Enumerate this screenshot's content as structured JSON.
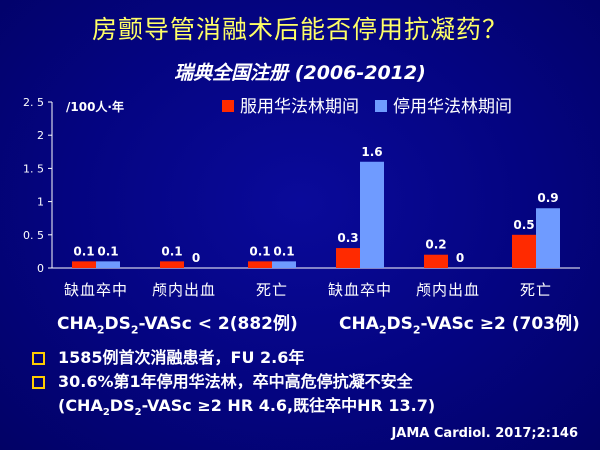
{
  "slide": {
    "title": "房颤导管消融术后能否停用抗凝药？",
    "subtitle": "瑞典全国注册 (2006-2012)"
  },
  "chart_data": {
    "type": "bar",
    "unit_label": "/100人·年",
    "categories": [
      "缺血卒中",
      "颅内出血",
      "死亡",
      "缺血卒中",
      "颅内出血",
      "死亡"
    ],
    "series": [
      {
        "name": "服用华法林期间",
        "color": "#ff2a00",
        "values": [
          0.1,
          0.1,
          0.1,
          0.3,
          0.2,
          0.5
        ],
        "labels": [
          "0.1",
          "0.1",
          "0.1",
          "0.3",
          "0.2",
          "0.5"
        ]
      },
      {
        "name": "停用华法林期间",
        "color": "#6f9bff",
        "values": [
          0.1,
          0,
          0.1,
          1.6,
          0,
          0.9
        ],
        "labels": [
          "0.1",
          "0",
          "0.1",
          "1.6",
          "0",
          "0.9"
        ]
      }
    ],
    "ylim": [
      0,
      2.5
    ],
    "yticks": [
      "0",
      "0. 5",
      "1",
      "1. 5",
      "2",
      "2. 5"
    ],
    "legend_position": "top",
    "grid": false,
    "group_labels": [
      {
        "prefix": "CHA",
        "sub1": "2",
        "mid": "DS",
        "sub2": "2",
        "suffix": "-VASc < 2(882例)"
      },
      {
        "prefix": "CHA",
        "sub1": "2",
        "mid": "DS",
        "sub2": "2",
        "suffix": "-VASc ≥2 (703例)"
      }
    ]
  },
  "bullets": {
    "b1": "1585例首次消融患者，FU 2.6年",
    "b2": "30.6%第1年停用华法林，卒中高危停抗凝不安全",
    "b2_cont": {
      "prefix": "(CHA",
      "sub1": "2",
      "mid": "DS",
      "sub2": "2",
      "suffix": "-VASc ≥2 HR 4.6,既往卒中HR  13.7)"
    }
  },
  "citation": "JAMA Cardiol. 2017;2:146",
  "colors": {
    "title": "#ffff66",
    "background": "#040480",
    "bullet_box": "#ffcc00"
  }
}
